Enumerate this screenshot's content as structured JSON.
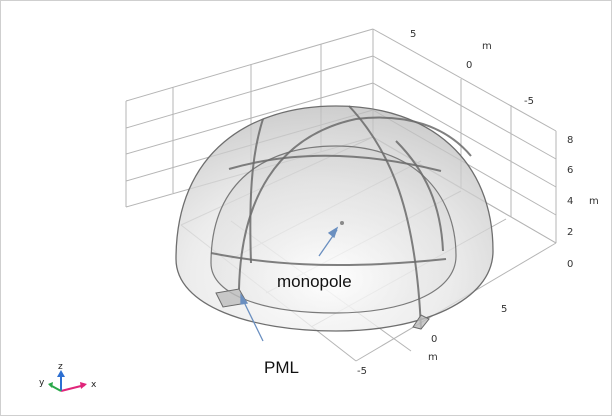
{
  "viewport": {
    "axis_unit": "m",
    "axis_ticks": {
      "y": [
        "5",
        "0",
        "-5"
      ],
      "z": [
        "8",
        "6",
        "4",
        "2",
        "0"
      ],
      "x": [
        "5",
        "0",
        "-5"
      ]
    },
    "annotations": {
      "monopole": "monopole",
      "pml": "PML"
    },
    "triad": {
      "x": "x",
      "y": "y",
      "z": "z"
    },
    "colors": {
      "background": "#ffffff",
      "grid": "#b0b0b0",
      "dome_fill": "#d4d4d4",
      "dome_edge": "#6e6e6e",
      "arrow": "#6a8fc0",
      "triad_x": "#e0257a",
      "triad_y": "#2aa84a",
      "triad_z": "#2d6fd1"
    }
  }
}
